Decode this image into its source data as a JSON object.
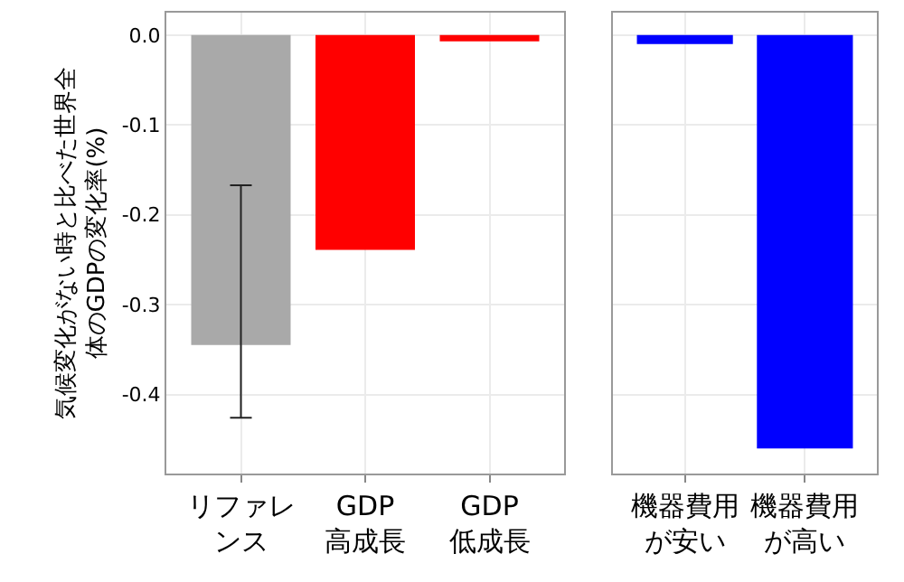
{
  "chart_data": [
    {
      "type": "bar",
      "ylabel": "気候変化がない時と比べた世界全体のGDPの変化率(%)",
      "categories": [
        "リファレンス",
        "GDP\n高成長",
        "GDP\n低成長"
      ],
      "values": [
        -0.345,
        -0.239,
        -0.007
      ],
      "colors": [
        "#a9a9a9",
        "#ff0000",
        "#ff0000"
      ],
      "errors": [
        [
          -0.426,
          -0.167
        ],
        null,
        null
      ],
      "ylim": [
        -0.488,
        0.025
      ],
      "yticks": [
        {
          "value": 0,
          "label": "0.0"
        },
        -0.1,
        -0.2,
        -0.3,
        -0.4
      ],
      "grid": true
    },
    {
      "type": "bar",
      "categories": [
        "機器費用が安い",
        "機器費用が高い"
      ],
      "values": [
        -0.01,
        -0.46
      ],
      "colors": [
        "#0000ff",
        "#0000ff"
      ],
      "ylim": [
        -0.488,
        0.025
      ],
      "yticks": [
        {
          "value": 0,
          "label": null
        },
        {
          "value": -0.1,
          "label": null
        },
        {
          "value": -0.2,
          "label": null
        },
        {
          "value": -0.3,
          "label": null
        },
        {
          "value": -0.4,
          "label": null
        }
      ],
      "grid": true,
      "tick_labels": "x"
    }
  ]
}
